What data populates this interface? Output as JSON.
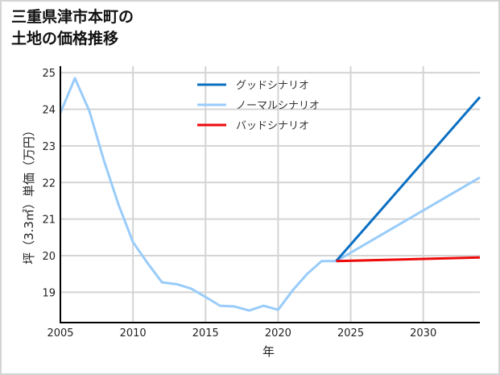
{
  "title": {
    "line1": "三重県津市本町の",
    "line2": "土地の価格推移"
  },
  "colors": {
    "good": "#0a6fc2",
    "normal": "#99ccfa",
    "bad": "#ee0a0a",
    "grid": "#d4d4d4",
    "axis": "#000000",
    "frame": "#d4d4d4"
  },
  "legend": [
    {
      "label": "グッドシナリオ",
      "series": "good"
    },
    {
      "label": "ノーマルシナリオ",
      "series": "normal"
    },
    {
      "label": "バッドシナリオ",
      "series": "bad"
    }
  ],
  "chart_data": {
    "type": "line",
    "title": "三重県津市本町の土地の価格推移",
    "xlabel": "年",
    "ylabel": "坪（3.3㎡）単価（万円）",
    "xlim": [
      2005,
      2033.9
    ],
    "ylim": [
      18.17,
      25.18
    ],
    "xticks": [
      2005,
      2010,
      2015,
      2020,
      2025,
      2030
    ],
    "yticks": [
      19,
      20,
      21,
      22,
      23,
      24,
      25
    ],
    "grid": true,
    "legend_position": "upper center",
    "series": [
      {
        "name": "ノーマルシナリオ",
        "key": "normal_history",
        "x": [
          2005,
          2006,
          2007,
          2008,
          2009,
          2010,
          2011,
          2012,
          2013,
          2014,
          2015,
          2016,
          2017,
          2018,
          2019,
          2020,
          2021,
          2022,
          2023,
          2024
        ],
        "values": [
          23.9,
          24.85,
          23.95,
          22.6,
          21.4,
          20.37,
          19.8,
          19.27,
          19.22,
          19.1,
          18.87,
          18.63,
          18.61,
          18.5,
          18.63,
          18.52,
          19.05,
          19.5,
          19.85,
          19.85
        ]
      },
      {
        "name": "グッドシナリオ",
        "key": "good",
        "x": [
          2024,
          2034
        ],
        "values": [
          19.85,
          24.38
        ]
      },
      {
        "name": "ノーマルシナリオ",
        "key": "normal",
        "x": [
          2024,
          2034
        ],
        "values": [
          19.85,
          22.16
        ]
      },
      {
        "name": "バッドシナリオ",
        "key": "bad",
        "x": [
          2024,
          2034
        ],
        "values": [
          19.85,
          19.95
        ]
      }
    ]
  }
}
